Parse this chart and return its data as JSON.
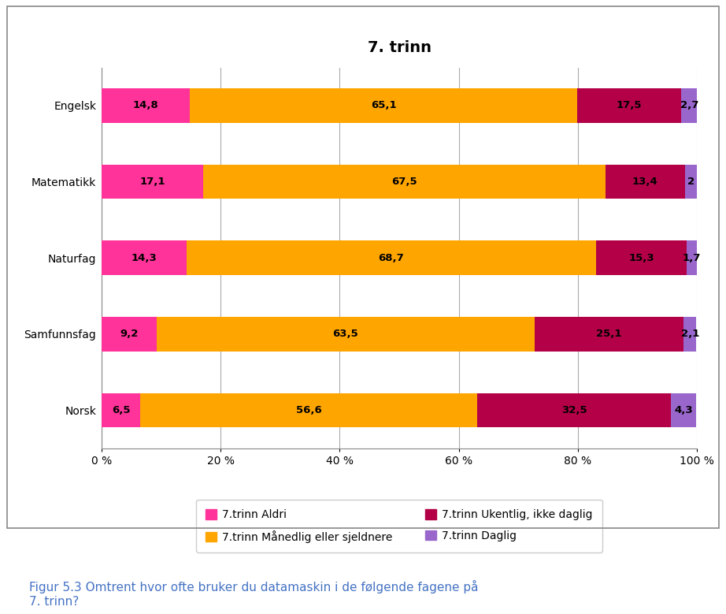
{
  "title": "7. trinn",
  "categories_display": [
    "Norsk",
    "Samfunnsfag",
    "Naturfag",
    "Matematikk",
    "Engelsk"
  ],
  "series": {
    "Aldri": [
      6.5,
      9.2,
      14.3,
      17.1,
      14.8
    ],
    "Månedlig eller sjeldnere": [
      56.6,
      63.5,
      68.7,
      67.5,
      65.1
    ],
    "Ukentlig, ikke daglig": [
      32.5,
      25.1,
      15.3,
      13.4,
      17.5
    ],
    "Daglig": [
      4.3,
      2.1,
      1.7,
      2.0,
      2.7
    ]
  },
  "bar_labels": {
    "Aldri": [
      "6,5",
      "9,2",
      "14,3",
      "17,1",
      "14,8"
    ],
    "Månedlig eller sjeldnere": [
      "56,6",
      "63,5",
      "68,7",
      "67,5",
      "65,1"
    ],
    "Ukentlig, ikke daglig": [
      "32,5",
      "25,1",
      "15,3",
      "13,4",
      "17,5"
    ],
    "Daglig": [
      "4,3",
      "2,1",
      "1,7",
      "2",
      "2,7"
    ]
  },
  "colors": {
    "Aldri": "#FF3399",
    "Månedlig eller sjeldnere": "#FFA500",
    "Ukentlig, ikke daglig": "#B30047",
    "Daglig": "#9966CC"
  },
  "legend_labels": {
    "Aldri": "7.trinn Aldri",
    "Månedlig eller sjeldnere": "7.trinn Månedlig eller sjeldnere",
    "Ukentlig, ikke daglig": "7.trinn Ukentlig, ikke daglig",
    "Daglig": "7.trinn Daglig"
  },
  "legend_order_col1": [
    "Aldri",
    "Ukentlig, ikke daglig"
  ],
  "legend_order_col2": [
    "Månedlig eller sjeldnere",
    "Daglig"
  ],
  "xlabel_ticks": [
    0,
    20,
    40,
    60,
    80,
    100
  ],
  "xlabel_labels": [
    "0 %",
    "20 %",
    "40 %",
    "60 %",
    "80 %",
    "100 %"
  ],
  "caption": "Figur 5.3 Omtrent hvor ofte bruker du datamaskin i de følgende fagene på\n7. trinn?",
  "background_color": "#FFFFFF",
  "title_fontsize": 14,
  "label_fontsize": 10,
  "bar_label_fontsize": 9.5,
  "legend_fontsize": 10,
  "caption_fontsize": 11,
  "caption_color": "#4472C4",
  "bar_height": 0.45
}
